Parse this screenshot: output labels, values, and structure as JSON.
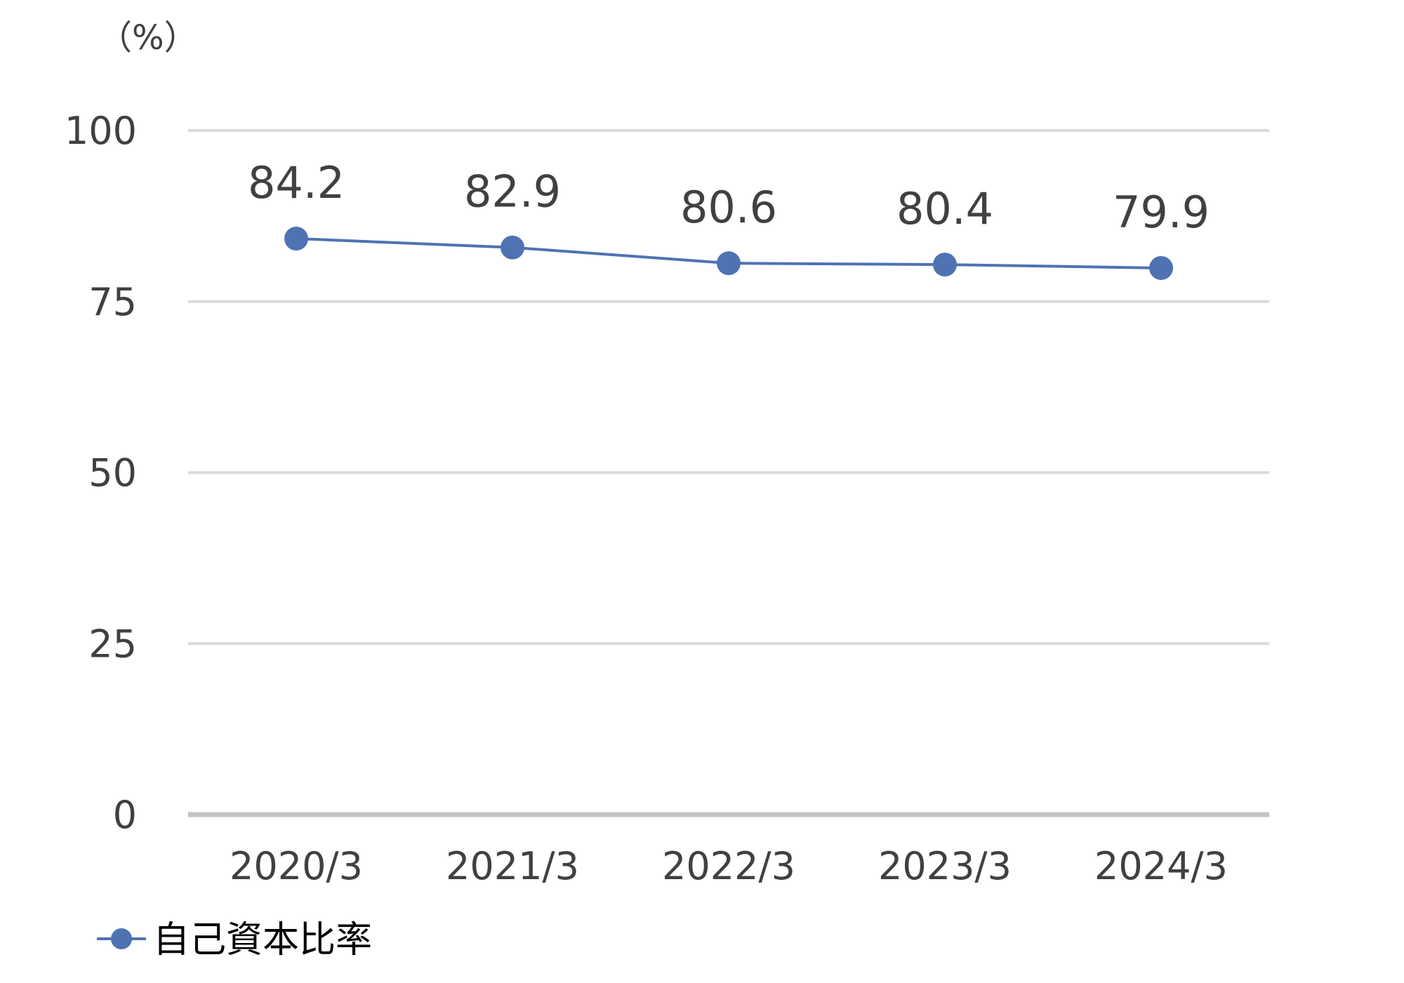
{
  "chart_data": {
    "type": "line",
    "y_unit": "（%）",
    "categories": [
      "2020/3",
      "2021/3",
      "2022/3",
      "2023/3",
      "2024/3"
    ],
    "series": [
      {
        "name": "自己資本比率",
        "values": [
          84.2,
          82.9,
          80.6,
          80.4,
          79.9
        ],
        "color": "#4f72b3"
      }
    ],
    "ylim": [
      0,
      100
    ],
    "yticks": [
      0,
      25,
      50,
      75,
      100
    ],
    "grid": true,
    "legend_position": "bottom-left",
    "data_labels": true
  }
}
